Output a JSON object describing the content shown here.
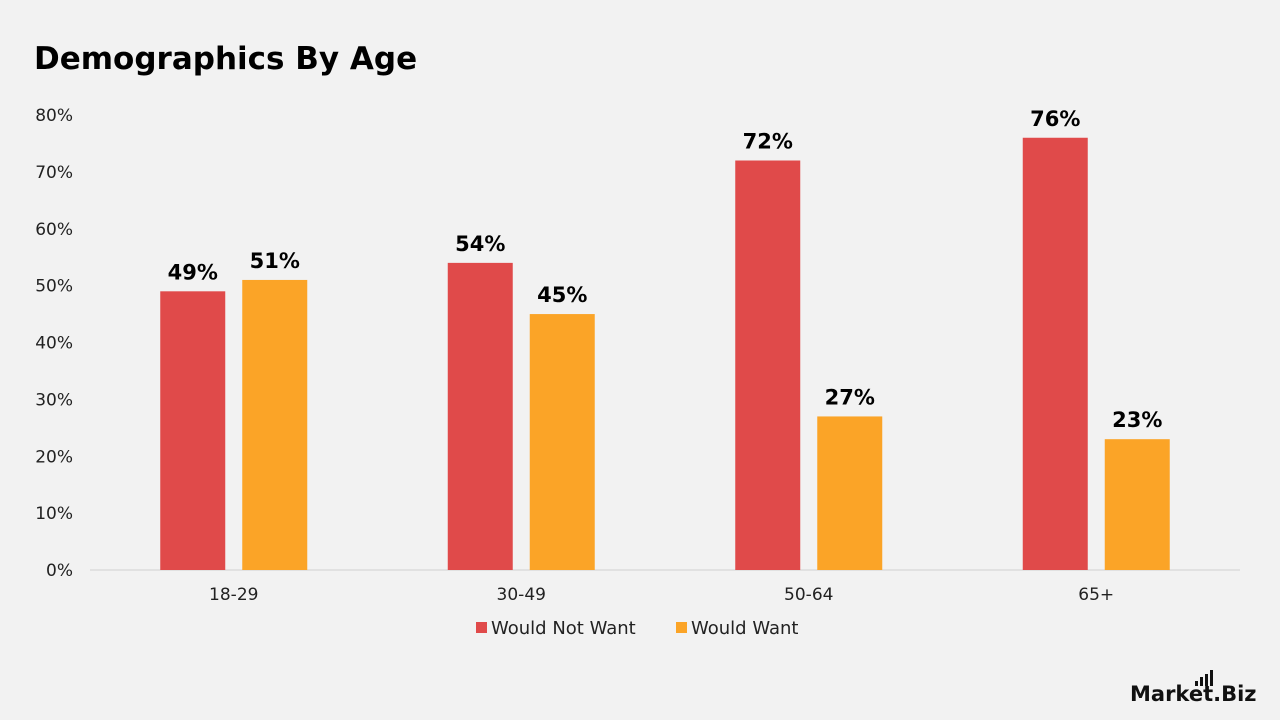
{
  "chart_data": {
    "type": "bar",
    "title": "Demographics By Age",
    "categories": [
      "18-29",
      "30-49",
      "50-64",
      "65+"
    ],
    "series": [
      {
        "name": "Would Not Want",
        "color": "#e04a4a",
        "values": [
          49,
          54,
          72,
          76
        ],
        "labels": [
          "49%",
          "54%",
          "72%",
          "76%"
        ]
      },
      {
        "name": "Would Want",
        "color": "#fba427",
        "values": [
          51,
          45,
          27,
          23
        ],
        "labels": [
          "51%",
          "45%",
          "27%",
          "23%"
        ]
      }
    ],
    "ylim": [
      0,
      80
    ],
    "yticks": [
      0,
      10,
      20,
      30,
      40,
      50,
      60,
      70,
      80
    ],
    "ytick_labels": [
      "0%",
      "10%",
      "20%",
      "30%",
      "40%",
      "50%",
      "60%",
      "70%",
      "80%"
    ],
    "xlabel": "",
    "ylabel": "",
    "grid": false,
    "legend_position": "bottom-center"
  },
  "brand": {
    "name_main": "Market",
    "name_suffix": ".Biz",
    "logo_icon": "bar-chart-icon"
  }
}
